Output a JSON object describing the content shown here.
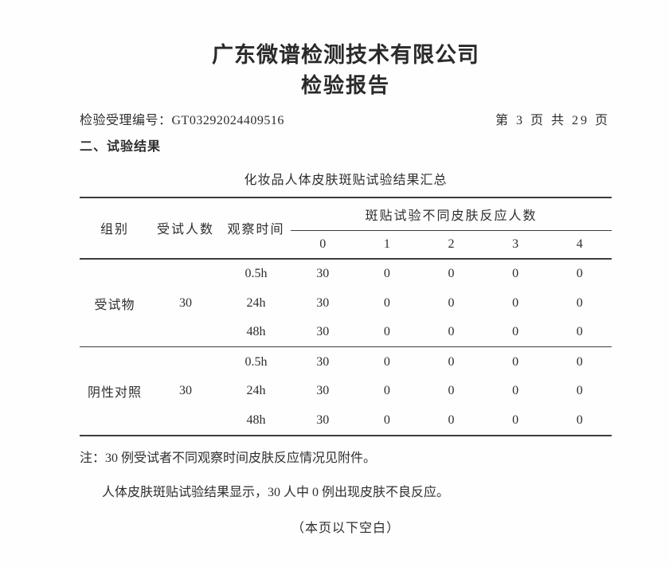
{
  "header": {
    "company_title": "广东微谱检测技术有限公司",
    "report_title": "检验报告",
    "acceptance_no_line": "检验受理编号：GT03292024409516",
    "page_indicator": "第 3 页 共 29 页",
    "section_heading": "二、试验结果"
  },
  "table": {
    "title": "化妆品人体皮肤斑贴试验结果汇总",
    "headers": {
      "group": "组别",
      "subjects": "受试人数",
      "time": "观察时间",
      "reaction_span": "斑贴试验不同皮肤反应人数",
      "reaction_levels": [
        "0",
        "1",
        "2",
        "3",
        "4"
      ]
    },
    "groups": [
      {
        "name": "受试物",
        "subjects": "30",
        "rows": [
          {
            "time": "0.5h",
            "values": [
              "30",
              "0",
              "0",
              "0",
              "0"
            ]
          },
          {
            "time": "24h",
            "values": [
              "30",
              "0",
              "0",
              "0",
              "0"
            ]
          },
          {
            "time": "48h",
            "values": [
              "30",
              "0",
              "0",
              "0",
              "0"
            ]
          }
        ]
      },
      {
        "name": "阴性对照",
        "subjects": "30",
        "rows": [
          {
            "time": "0.5h",
            "values": [
              "30",
              "0",
              "0",
              "0",
              "0"
            ]
          },
          {
            "time": "24h",
            "values": [
              "30",
              "0",
              "0",
              "0",
              "0"
            ]
          },
          {
            "time": "48h",
            "values": [
              "30",
              "0",
              "0",
              "0",
              "0"
            ]
          }
        ]
      }
    ]
  },
  "notes": {
    "note1": "注：30 例受试者不同观察时间皮肤反应情况见附件。",
    "note2": "人体皮肤斑贴试验结果显示，30 人中 0 例出现皮肤不良反应。",
    "blank_note": "（本页以下空白）"
  },
  "colors": {
    "text": "#2e2e2e",
    "rule": "#3d3d3d",
    "paper": "#fefefe"
  }
}
